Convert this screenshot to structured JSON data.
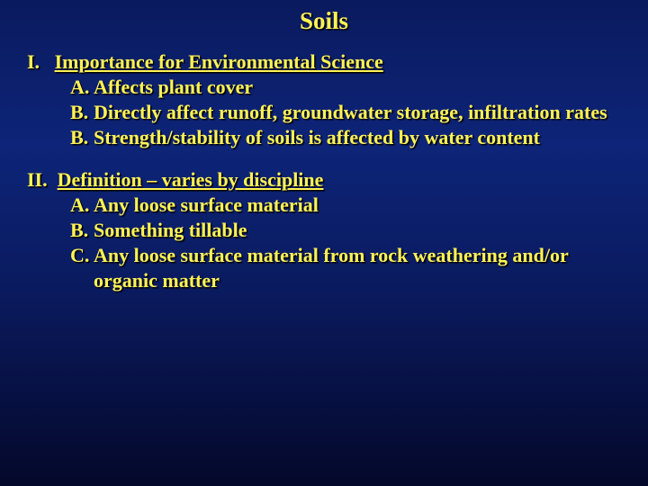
{
  "colors": {
    "text": "#fff354",
    "shadow": "#000000",
    "bg_top": "#0a1a5e",
    "bg_mid": "#0d2478",
    "bg_bottom": "#04082a"
  },
  "typography": {
    "family": "Times New Roman",
    "title_size_pt": 20,
    "body_size_pt": 17,
    "weight": "bold"
  },
  "title": "Soils",
  "sections": [
    {
      "roman": "I.",
      "heading": "Importance for Environmental Science",
      "items": [
        {
          "label": "A.",
          "text": "Affects plant cover"
        },
        {
          "label": "B.",
          "text": "Directly affect runoff, groundwater storage, infiltration rates"
        },
        {
          "label": "B.",
          "text": "Strength/stability of soils is affected by water content"
        }
      ]
    },
    {
      "roman": "II.",
      "heading": "Definition – varies by discipline",
      "items": [
        {
          "label": "A.",
          "text": "Any loose surface material"
        },
        {
          "label": "B.",
          "text": "Something tillable"
        },
        {
          "label": "C.",
          "text": "Any loose surface material from rock weathering and/or organic matter"
        }
      ]
    }
  ]
}
